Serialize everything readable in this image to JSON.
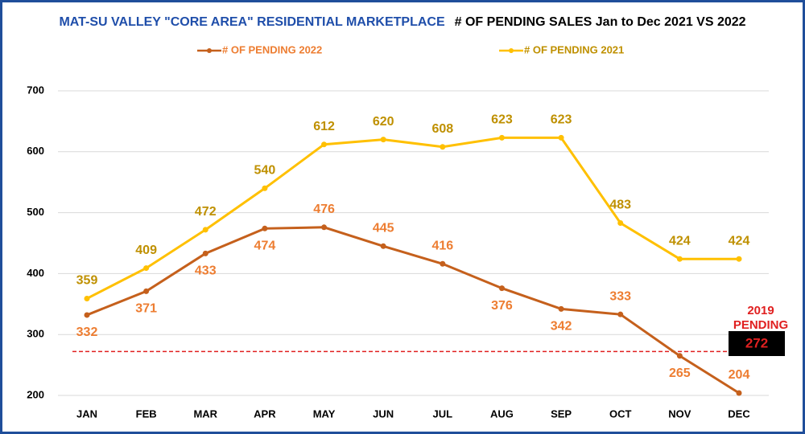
{
  "chart_data": {
    "type": "line",
    "title": "MAT-SU VALLEY \"CORE AREA\" RESIDENTIAL MARKETPLACE",
    "subtitle": "# OF PENDING SALES Jan to Dec 2021 VS 2022",
    "categories": [
      "JAN",
      "FEB",
      "MAR",
      "APR",
      "MAY",
      "JUN",
      "JUL",
      "AUG",
      "SEP",
      "OCT",
      "NOV",
      "DEC"
    ],
    "series": [
      {
        "name": "# OF PENDING 2022",
        "color": "#c5601c",
        "label_color": "#ed7d31",
        "values": [
          332,
          371,
          433,
          474,
          476,
          445,
          416,
          376,
          342,
          333,
          265,
          204
        ]
      },
      {
        "name": "# OF PENDING 2021",
        "color": "#ffc000",
        "label_color": "#bf9000",
        "values": [
          359,
          409,
          472,
          540,
          612,
          620,
          608,
          623,
          623,
          483,
          424,
          424
        ]
      }
    ],
    "ylim": [
      200,
      700
    ],
    "yticks": [
      200,
      300,
      400,
      500,
      600,
      700
    ],
    "grid": true,
    "reference_line": {
      "label": "2019 PENDING",
      "value": 272,
      "color": "#e02020"
    }
  }
}
